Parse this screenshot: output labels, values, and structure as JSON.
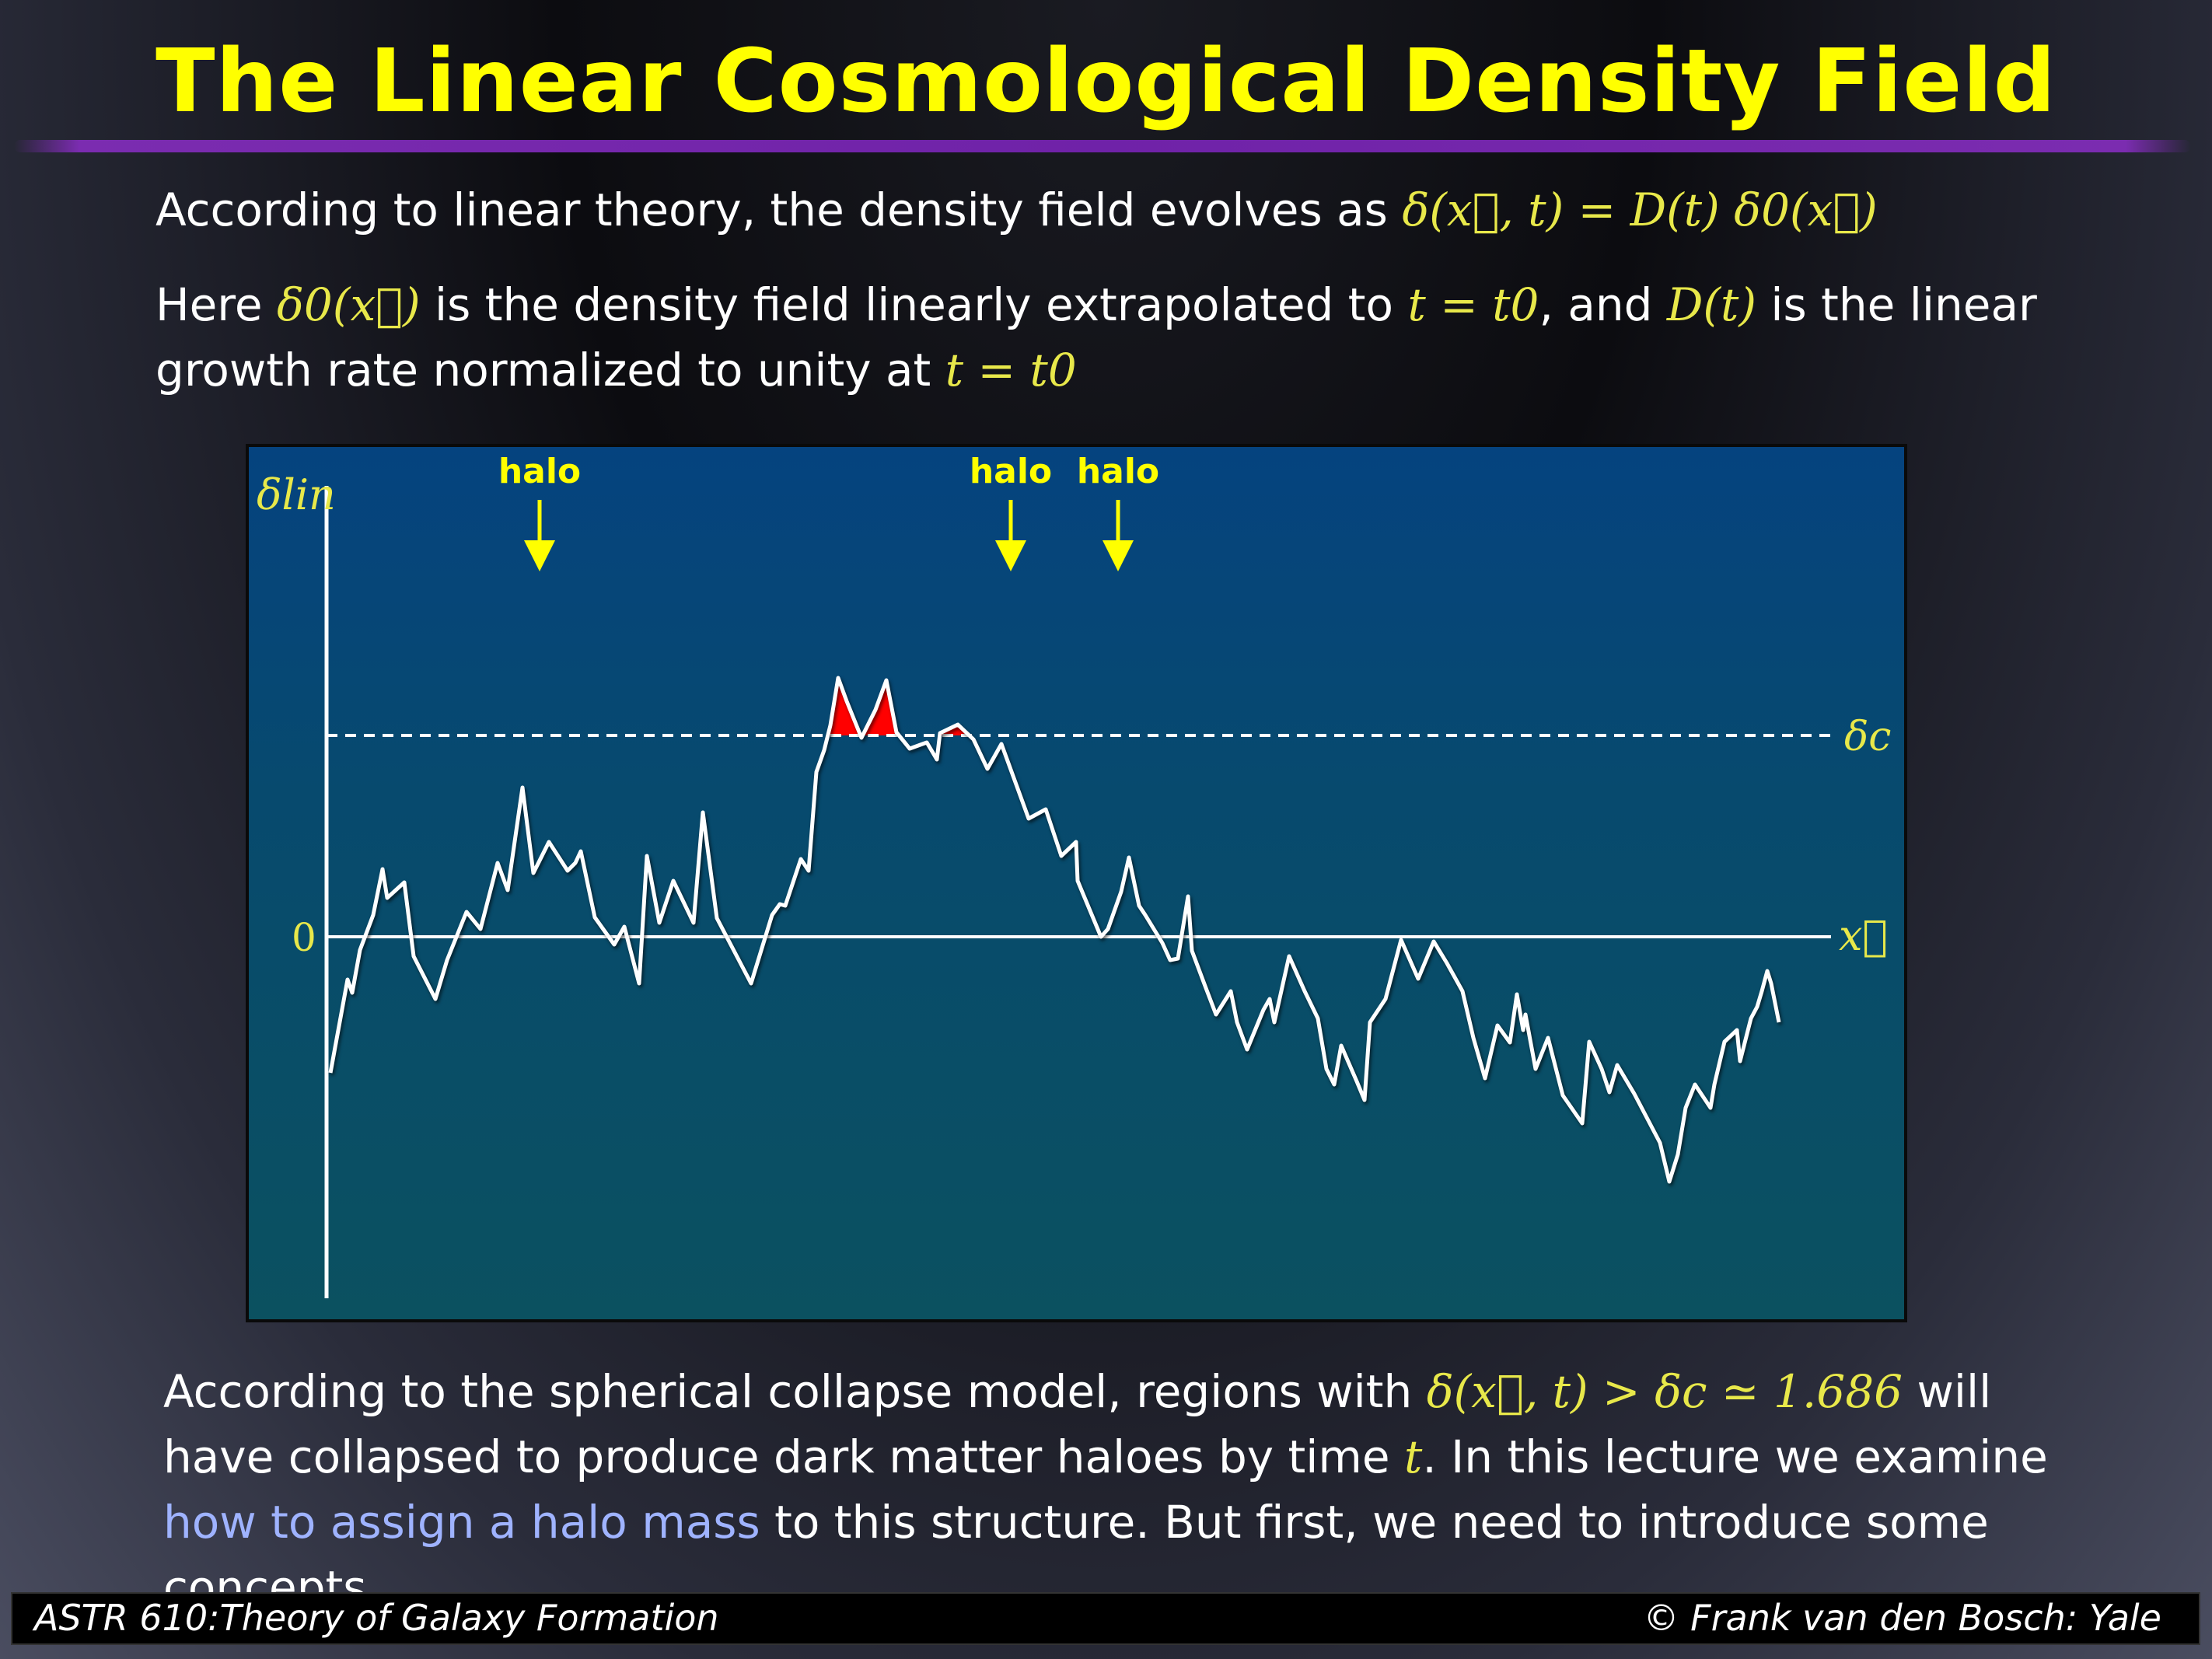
{
  "slide": {
    "title": "The Linear Cosmological Density Field"
  },
  "text": {
    "p1_text": "According to linear theory, the density field evolves as",
    "p1_math": "δ(x⃗, t) = D(t) δ0(x⃗)",
    "p2_a": "Here",
    "p2_m1": "δ0(x⃗)",
    "p2_b": "is the density field linearly extrapolated to",
    "p2_m2": "t = t0",
    "p2_c": ", and",
    "p2_m3": "D(t)",
    "p2_d": "is the linear growth rate normalized to unity at",
    "p2_m4": "t = t0",
    "p3_a": "According to the spherical collapse model, regions with",
    "p3_m1": "δ(x⃗, t) > δc ≃ 1.686",
    "p3_b": "will have collapsed to produce dark matter haloes by time",
    "p3_m2": "t",
    "p3_c": ". In this lecture we examine",
    "p3_link": "how to assign a halo mass",
    "p3_d": "to this structure. But first, we need to introduce some concepts..."
  },
  "figure": {
    "y_label": "δlin",
    "x_label": "x⃗",
    "zero_label": "0",
    "threshold_label": "δc",
    "halo_labels": [
      "halo",
      "halo",
      "halo"
    ],
    "colors": {
      "curve": "#ffffff",
      "halo_fill": "#ff0000",
      "labels": "#ffff00",
      "math": "#e8e84a"
    }
  },
  "footer": {
    "left": "ASTR 610:Theory of Galaxy Formation",
    "right": "© Frank van den Bosch: Yale"
  }
}
